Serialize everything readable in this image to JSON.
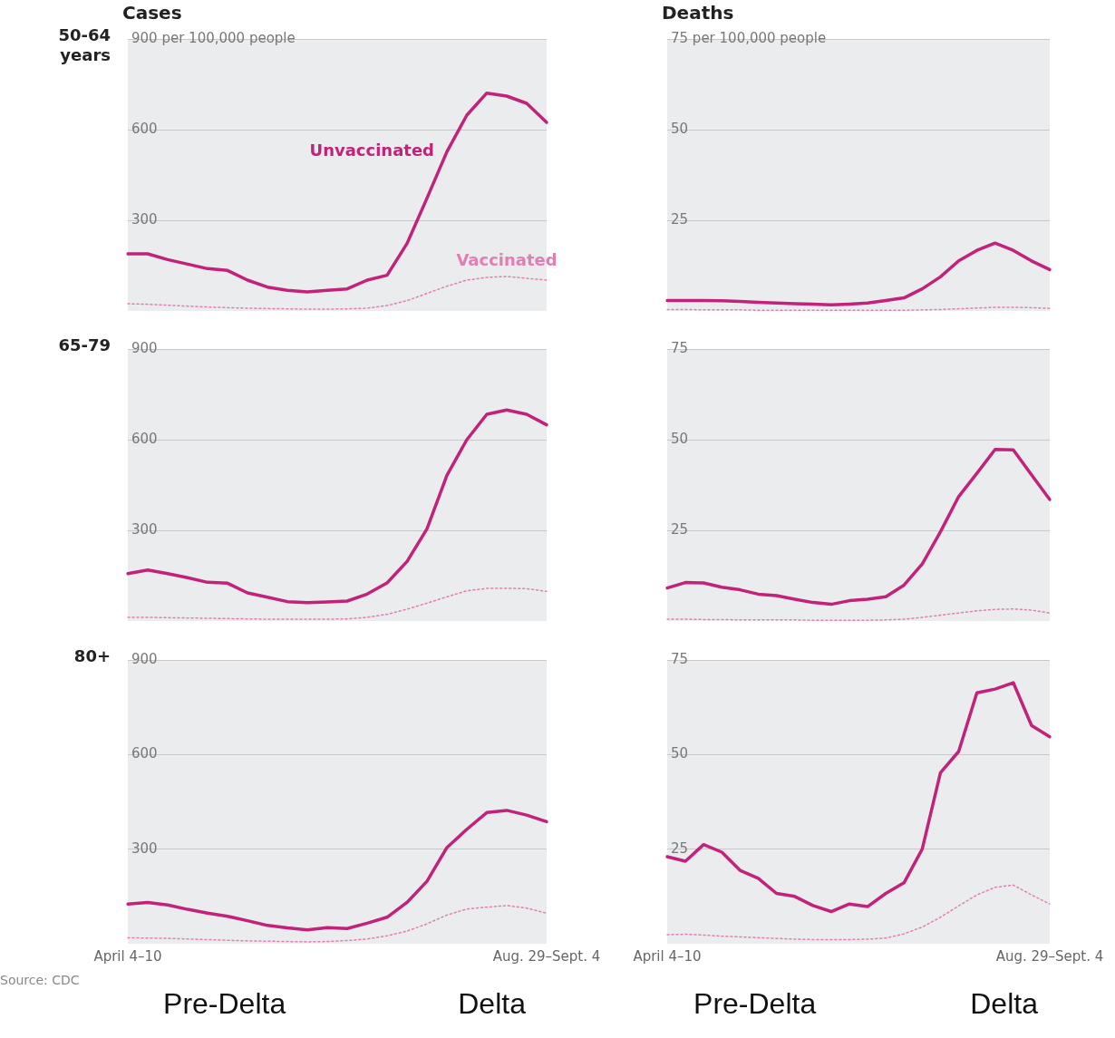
{
  "chart_data": [
    {
      "type": "line",
      "title": "Cases",
      "ylabel": "50-64 years",
      "categories": [
        null,
        null,
        null,
        null,
        null,
        null,
        null,
        null,
        null,
        null,
        null,
        null,
        null,
        null,
        null,
        null,
        null,
        null,
        null,
        null,
        null,
        null
      ],
      "ylim": [
        0,
        900
      ],
      "yticks": [
        300,
        600,
        {
          "value": 900,
          "label": "900 per 100,000 people"
        }
      ],
      "grid": "y",
      "legend": false,
      "marker": "none",
      "tick_labels": "y",
      "series": [
        {
          "name": "Unvaccinated",
          "color": "#c2227a",
          "line_style": "solid",
          "values": [
            189,
            189,
            170,
            155,
            140,
            134,
            102,
            79,
            68,
            63,
            68,
            73,
            102,
            118,
            223,
            373,
            527,
            648,
            721,
            711,
            687,
            624
          ]
        },
        {
          "name": "Vaccinated",
          "color": "#e27fb2",
          "line_style": "dotted",
          "values": [
            24,
            22,
            19,
            16,
            13,
            11,
            9,
            8,
            7,
            6,
            6,
            7,
            9,
            18,
            34,
            58,
            82,
            102,
            111,
            114,
            108,
            102
          ]
        }
      ]
    },
    {
      "type": "line",
      "title": "Deaths",
      "categories": [
        null,
        null,
        null,
        null,
        null,
        null,
        null,
        null,
        null,
        null,
        null,
        null,
        null,
        null,
        null,
        null,
        null,
        null,
        null,
        null,
        null,
        null
      ],
      "ylim": [
        0,
        75
      ],
      "yticks": [
        25,
        50,
        {
          "value": 75,
          "label": "75 per 100,000 people"
        }
      ],
      "grid": "y",
      "legend": false,
      "marker": "none",
      "tick_labels": "y",
      "series": [
        {
          "color": "#c2227a",
          "line_style": "solid",
          "values": [
            2.9,
            2.9,
            2.9,
            2.8,
            2.6,
            2.4,
            2.2,
            2.0,
            1.9,
            1.7,
            1.9,
            2.2,
            2.9,
            3.6,
            6.1,
            9.4,
            13.8,
            16.7,
            18.7,
            16.7,
            13.8,
            11.4
          ]
        },
        {
          "color": "#e27fb2",
          "line_style": "dotted",
          "values": [
            0.4,
            0.4,
            0.3,
            0.3,
            0.3,
            0.2,
            0.2,
            0.2,
            0.2,
            0.2,
            0.2,
            0.2,
            0.2,
            0.2,
            0.3,
            0.4,
            0.6,
            0.8,
            1.0,
            1.0,
            0.9,
            0.7
          ]
        }
      ]
    },
    {
      "type": "line",
      "ylabel": "65-79",
      "categories": [
        null,
        null,
        null,
        null,
        null,
        null,
        null,
        null,
        null,
        null,
        null,
        null,
        null,
        null,
        null,
        null,
        null,
        null,
        null,
        null,
        null,
        null
      ],
      "ylim": [
        0,
        900
      ],
      "yticks": [
        300,
        600,
        900
      ],
      "grid": "y",
      "legend": false,
      "marker": "none",
      "tick_labels": "y",
      "series": [
        {
          "color": "#c2227a",
          "line_style": "solid",
          "values": [
            157,
            169,
            157,
            143,
            128,
            125,
            93,
            79,
            64,
            61,
            63,
            66,
            89,
            126,
            197,
            305,
            482,
            600,
            684,
            698,
            684,
            649
          ]
        },
        {
          "color": "#e27fb2",
          "line_style": "dotted",
          "values": [
            12,
            12,
            11,
            10,
            9,
            8,
            7,
            6,
            6,
            6,
            6,
            7,
            12,
            22,
            39,
            59,
            80,
            100,
            108,
            108,
            107,
            98
          ]
        }
      ]
    },
    {
      "type": "line",
      "categories": [
        null,
        null,
        null,
        null,
        null,
        null,
        null,
        null,
        null,
        null,
        null,
        null,
        null,
        null,
        null,
        null,
        null,
        null,
        null,
        null,
        null,
        null
      ],
      "ylim": [
        0,
        75
      ],
      "yticks": [
        25,
        50,
        75
      ],
      "grid": "y",
      "legend": false,
      "marker": "none",
      "tick_labels": "y",
      "series": [
        {
          "color": "#c2227a",
          "line_style": "solid",
          "values": [
            9.1,
            10.6,
            10.5,
            9.3,
            8.6,
            7.4,
            7.0,
            6.0,
            5.1,
            4.6,
            5.6,
            6.0,
            6.7,
            9.9,
            15.7,
            24.6,
            34.3,
            40.7,
            47.3,
            47.2,
            40.3,
            33.5
          ]
        },
        {
          "color": "#e27fb2",
          "line_style": "dotted",
          "values": [
            0.5,
            0.5,
            0.4,
            0.4,
            0.3,
            0.3,
            0.3,
            0.3,
            0.2,
            0.2,
            0.2,
            0.2,
            0.3,
            0.5,
            1.0,
            1.6,
            2.2,
            2.8,
            3.2,
            3.3,
            3.0,
            2.2
          ]
        }
      ]
    },
    {
      "type": "line",
      "ylabel": "80+",
      "categories": [
        "April 4–10",
        null,
        null,
        null,
        null,
        null,
        null,
        null,
        null,
        null,
        null,
        null,
        null,
        null,
        null,
        null,
        null,
        null,
        null,
        null,
        null,
        "Aug. 29–Sept. 4"
      ],
      "ylim": [
        0,
        900
      ],
      "yticks": [
        300,
        600,
        900
      ],
      "grid": "y",
      "legend": false,
      "marker": "none",
      "annotations": [
        "Source: CDC",
        "Pre-Delta",
        "Delta"
      ],
      "series": [
        {
          "color": "#c2227a",
          "line_style": "solid",
          "values": [
            126,
            131,
            123,
            109,
            97,
            87,
            73,
            58,
            50,
            44,
            51,
            48,
            65,
            84,
            131,
            198,
            305,
            363,
            416,
            423,
            408,
            387
          ]
        },
        {
          "color": "#e27fb2",
          "line_style": "dotted",
          "values": [
            19,
            18,
            17,
            15,
            13,
            11,
            9,
            8,
            7,
            6,
            7,
            10,
            15,
            25,
            40,
            63,
            91,
            110,
            116,
            121,
            113,
            97
          ]
        }
      ]
    },
    {
      "type": "line",
      "categories": [
        "April 4–10",
        null,
        null,
        null,
        null,
        null,
        null,
        null,
        null,
        null,
        null,
        null,
        null,
        null,
        null,
        null,
        null,
        null,
        null,
        null,
        null,
        "Aug. 29–Sept. 4"
      ],
      "ylim": [
        0,
        75
      ],
      "yticks": [
        25,
        50,
        75
      ],
      "grid": "y",
      "legend": false,
      "marker": "none",
      "annotations": [
        "Pre-Delta",
        "Delta"
      ],
      "series": [
        {
          "color": "#c2227a",
          "line_style": "solid",
          "values": [
            23.0,
            21.8,
            26.2,
            24.2,
            19.4,
            17.3,
            13.3,
            12.5,
            10.1,
            8.5,
            10.5,
            9.8,
            13.3,
            16.1,
            25.0,
            45.2,
            50.8,
            66.3,
            67.3,
            69.0,
            57.7,
            54.7
          ]
        },
        {
          "color": "#e27fb2",
          "line_style": "dotted",
          "values": [
            2.4,
            2.5,
            2.3,
            2.0,
            1.8,
            1.6,
            1.4,
            1.2,
            1.1,
            1.1,
            1.1,
            1.2,
            1.5,
            2.6,
            4.4,
            7.0,
            10.0,
            12.9,
            14.9,
            15.5,
            12.9,
            10.5
          ]
        }
      ]
    }
  ]
}
